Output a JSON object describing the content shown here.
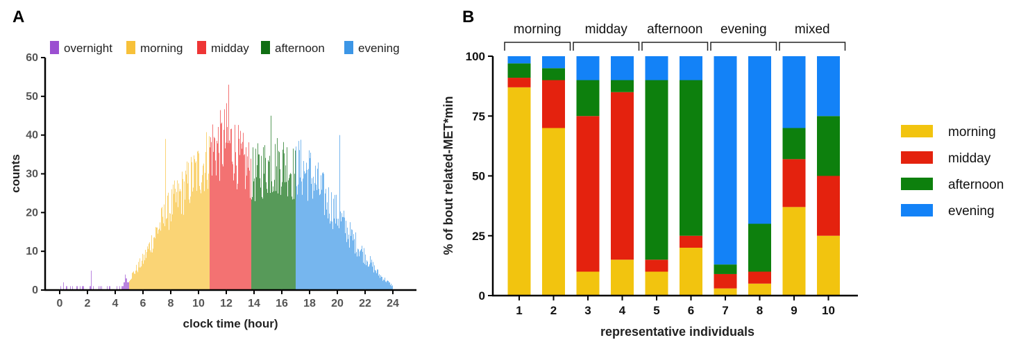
{
  "chart_data": [
    {
      "panel": "A",
      "type": "bar",
      "xlabel": "clock time (hour)",
      "ylabel": "counts",
      "xlim": [
        0,
        24
      ],
      "ylim": [
        0,
        60
      ],
      "xticks": [
        0,
        2,
        4,
        6,
        8,
        10,
        12,
        14,
        16,
        18,
        20,
        22,
        24
      ],
      "yticks": [
        0,
        10,
        20,
        30,
        40,
        50,
        60
      ],
      "legend": [
        "overnight",
        "morning",
        "midday",
        "afternoon",
        "evening"
      ],
      "legend_position": "top",
      "colors": {
        "overnight": "#9b4fd1",
        "morning": "#f7c13a",
        "midday": "#ee3535",
        "afternoon": "#0f6e12",
        "evening": "#3c96e6"
      },
      "bin_width_hours": 0.05,
      "series": [
        {
          "name": "overnight",
          "x_range": [
            0,
            5
          ],
          "envelope_x": [
            0,
            0.5,
            1,
            2,
            3,
            3.5,
            4.0,
            4.7,
            5.0
          ],
          "envelope_y": [
            2,
            1.5,
            1,
            1,
            0.8,
            0.6,
            1.0,
            2.5,
            3.5
          ],
          "peak": 5
        },
        {
          "name": "morning",
          "x_range": [
            5,
            10.8
          ],
          "envelope_x": [
            5,
            6,
            7,
            8,
            9,
            10,
            10.8
          ],
          "envelope_y": [
            3,
            8,
            16,
            22,
            27,
            32,
            36
          ],
          "peak": 39
        },
        {
          "name": "midday",
          "x_range": [
            10.8,
            13.8
          ],
          "envelope_x": [
            10.8,
            11.5,
            12,
            12.5,
            13,
            13.8
          ],
          "envelope_y": [
            38,
            38,
            40,
            38,
            34,
            32
          ],
          "peak": 53
        },
        {
          "name": "afternoon",
          "x_range": [
            13.8,
            17.0
          ],
          "envelope_x": [
            13.8,
            14.5,
            15,
            15.5,
            16,
            16.5,
            17.0
          ],
          "envelope_y": [
            30,
            32,
            33,
            33,
            34,
            33,
            30
          ],
          "peak": 45
        },
        {
          "name": "evening",
          "x_range": [
            17.0,
            24
          ],
          "envelope_x": [
            17.0,
            18,
            19,
            20,
            21,
            22,
            23,
            24
          ],
          "envelope_y": [
            33,
            31,
            25,
            20,
            14,
            9,
            4,
            1
          ],
          "peak": 40
        }
      ]
    },
    {
      "panel": "B",
      "type": "bar",
      "stacked": true,
      "xlabel": "representative individuals",
      "ylabel": "% of bout related-MET*min",
      "categories": [
        "1",
        "2",
        "3",
        "4",
        "5",
        "6",
        "7",
        "8",
        "9",
        "10"
      ],
      "ylim": [
        0,
        100
      ],
      "yticks": [
        0,
        25,
        50,
        75,
        100
      ],
      "groups": [
        {
          "label": "morning",
          "members": [
            "1",
            "2"
          ]
        },
        {
          "label": "midday",
          "members": [
            "3",
            "4"
          ]
        },
        {
          "label": "afternoon",
          "members": [
            "5",
            "6"
          ]
        },
        {
          "label": "evening",
          "members": [
            "7",
            "8"
          ]
        },
        {
          "label": "mixed",
          "members": [
            "9",
            "10"
          ]
        }
      ],
      "legend_position": "right",
      "series": [
        {
          "name": "morning",
          "color": "#f2c40f",
          "values": [
            87,
            70,
            10,
            15,
            10,
            20,
            3,
            5,
            37,
            25
          ]
        },
        {
          "name": "midday",
          "color": "#e4220e",
          "values": [
            4,
            20,
            65,
            70,
            5,
            5,
            6,
            5,
            20,
            25
          ]
        },
        {
          "name": "afternoon",
          "color": "#0d800d",
          "values": [
            6,
            5,
            15,
            5,
            75,
            65,
            4,
            20,
            13,
            25
          ]
        },
        {
          "name": "evening",
          "color": "#1382f7",
          "values": [
            3,
            5,
            10,
            10,
            10,
            10,
            87,
            70,
            30,
            25
          ]
        }
      ]
    }
  ]
}
